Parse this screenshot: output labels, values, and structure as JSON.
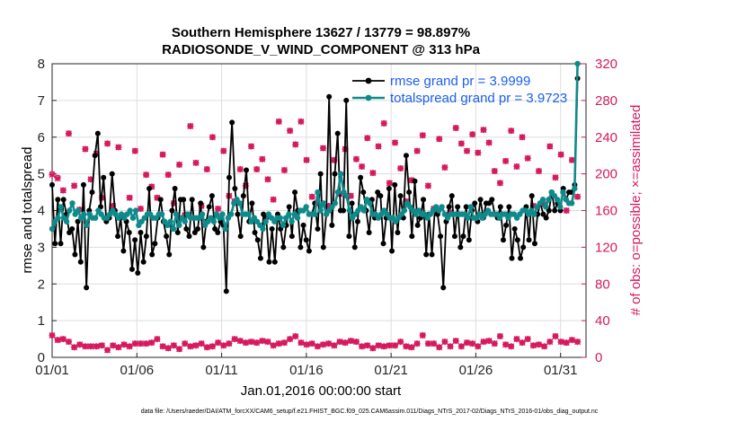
{
  "colors": {
    "rmse": "#000000",
    "spread": "#0f8a8a",
    "obs": "#d6195e",
    "legend_text": "#1a5ff0",
    "grid": "#dddddd"
  },
  "chart_data": {
    "type": "line",
    "title": "Southern Hemisphere 13627 / 13779 = 98.897%",
    "subtitle": "RADIOSONDE_V_WIND_COMPONENT @ 313 hPa",
    "xlabel": "Jan.01,2016 00:00:00 start",
    "ylabel": "rmse and totalspread",
    "ylabel_right": "# of obs: o=possible; ×=assimilated",
    "footnote": "data file: /Users/raeder/DAI/ATM_forcXX/CAM6_setup/f.e21.FHIST_BGC.f09_025.CAM6assim.011/Diags_NTrS_2017-02/Diags_NTrS_2016-01/obs_diag_output.nc",
    "xlim": [
      0,
      31.5
    ],
    "ylim": [
      0,
      8
    ],
    "ylim_right": [
      0,
      320
    ],
    "x_ticks": [
      0,
      5,
      10,
      15,
      20,
      25,
      30
    ],
    "x_tick_labels": [
      "01/01",
      "01/06",
      "01/11",
      "01/16",
      "01/21",
      "01/26",
      "01/31"
    ],
    "y_ticks": [
      0,
      1,
      2,
      3,
      4,
      5,
      6,
      7,
      8
    ],
    "y_tick_labels": [
      "0",
      "1",
      "2",
      "3",
      "4",
      "5",
      "6",
      "7",
      "8"
    ],
    "y_right_ticks": [
      0,
      40,
      80,
      120,
      160,
      200,
      240,
      280,
      320
    ],
    "y_right_tick_labels": [
      "0",
      "40",
      "80",
      "120",
      "160",
      "200",
      "240",
      "280",
      "320"
    ],
    "legend": [
      {
        "name": "rmse",
        "label": "rmse grand pr = 3.9999"
      },
      {
        "name": "totalspread",
        "label": "totalspread grand pr = 3.9723"
      }
    ],
    "series": [
      {
        "name": "rmse",
        "axis": "left",
        "values": [
          4.7,
          3.1,
          4.3,
          3.1,
          4.3,
          3.9,
          3.4,
          3.5,
          2.8,
          3.7,
          2.6,
          4.7,
          1.9,
          4.0,
          4.5,
          5.5,
          6.1,
          4.1,
          4.9,
          3.7,
          3.8,
          5.0,
          4.0,
          3.3,
          3.8,
          2.9,
          3.7,
          3.4,
          2.4,
          3.2,
          2.3,
          3.4,
          2.6,
          3.3,
          4.6,
          2.8,
          3.1,
          3.8,
          4.3,
          3.7,
          3.3,
          2.8,
          4.0,
          4.6,
          3.4,
          4.3,
          4.3,
          3.5,
          3.3,
          4.3,
          3.4,
          3.5,
          4.2,
          3.0,
          3.7,
          4.1,
          4.4,
          3.5,
          3.4,
          3.7,
          3.6,
          1.8,
          4.9,
          6.4,
          4.6,
          3.9,
          3.3,
          4.4,
          5.1,
          3.7,
          4.2,
          3.4,
          3.2,
          2.7,
          3.9,
          3.8,
          2.6,
          3.5,
          2.6,
          3.9,
          3.5,
          3.0,
          3.6,
          4.1,
          3.3,
          4.5,
          4.0,
          3.0,
          3.6,
          3.2,
          2.9,
          3.9,
          4.2,
          3.5,
          5.0,
          3.0,
          3.9,
          7.1,
          3.6,
          5.0,
          6.1,
          4.0,
          4.0,
          7.0,
          3.3,
          4.2,
          3.0,
          3.7,
          4.9,
          4.5,
          4.0,
          3.4,
          4.3,
          3.8,
          4.5,
          4.4,
          3.1,
          3.8,
          4.6,
          2.9,
          4.7,
          3.4,
          4.4,
          3.8,
          5.5,
          4.5,
          3.3,
          4.8,
          3.6,
          3.8,
          4.3,
          2.8,
          3.9,
          2.8,
          4.0,
          3.9,
          3.3,
          1.9,
          3.7,
          4.1,
          4.4,
          3.3,
          4.1,
          3.0,
          3.3,
          4.1,
          3.2,
          4.0,
          4.2,
          3.7,
          4.3,
          3.8,
          4.2,
          4.2,
          4.3,
          3.9,
          3.8,
          4.1,
          3.2,
          3.6,
          4.1,
          2.7,
          3.5,
          3.2,
          2.7,
          3.0,
          4.1,
          3.2,
          4.4,
          3.1,
          3.9,
          4.2,
          3.9,
          3.8,
          4.0,
          4.5,
          4.0,
          4.2,
          4.0,
          4.6,
          4.3,
          4.5,
          4.5,
          4.7,
          7.6
        ]
      },
      {
        "name": "totalspread",
        "axis": "left",
        "values": [
          3.5,
          3.7,
          3.8,
          4.1,
          3.8,
          3.7,
          4.0,
          4.2,
          3.9,
          4.0,
          3.8,
          3.9,
          3.6,
          3.9,
          3.8,
          3.8,
          4.0,
          3.9,
          3.8,
          3.8,
          3.9,
          4.0,
          3.9,
          3.8,
          3.9,
          3.8,
          3.9,
          4.0,
          3.8,
          4.0,
          3.6,
          3.7,
          3.8,
          3.9,
          3.9,
          3.8,
          3.8,
          3.9,
          3.9,
          3.7,
          3.6,
          3.7,
          3.5,
          3.9,
          3.6,
          3.8,
          3.7,
          3.9,
          3.8,
          3.8,
          3.8,
          3.8,
          3.9,
          3.6,
          3.7,
          3.8,
          3.7,
          3.9,
          3.8,
          3.9,
          3.5,
          3.8,
          3.9,
          4.2,
          4.3,
          4.2,
          3.9,
          3.9,
          3.9,
          3.7,
          3.8,
          3.7,
          3.6,
          3.5,
          3.7,
          3.9,
          3.8,
          3.7,
          3.8,
          3.8,
          3.6,
          3.8,
          3.9,
          3.7,
          3.9,
          3.8,
          4.0,
          4.0,
          4.1,
          3.9,
          3.9,
          3.9,
          4.5,
          4.0,
          4.2,
          3.9,
          4.0,
          4.1,
          4.2,
          4.5,
          5.0,
          4.5,
          4.4,
          4.0,
          3.8,
          3.9,
          4.0,
          4.1,
          4.0,
          4.3,
          4.2,
          3.9,
          3.9,
          3.8,
          3.9,
          4.0,
          3.9,
          3.8,
          3.8,
          3.7,
          3.8,
          3.9,
          4.0,
          4.2,
          4.1,
          4.0,
          3.9,
          4.0,
          3.9,
          3.9,
          3.8,
          3.9,
          4.0,
          4.1,
          4.0,
          4.1,
          3.9,
          3.8,
          3.9,
          3.9,
          3.9,
          3.9,
          3.9,
          3.9,
          3.8,
          4.1,
          3.8,
          3.8,
          3.9,
          3.8,
          3.9,
          4.0,
          3.9,
          3.9,
          3.9,
          3.8,
          3.9,
          3.9,
          3.8,
          3.9,
          3.9,
          3.8,
          3.9,
          4.0,
          4.0,
          3.9,
          4.0,
          3.9,
          4.1,
          4.2,
          4.3,
          4.1,
          4.3,
          4.5,
          4.4,
          4.3,
          4.1,
          4.5,
          4.3,
          4.2,
          4.2,
          4.6,
          8.0
        ]
      },
      {
        "name": "obs_possible",
        "axis": "right",
        "marker": "o",
        "values": [
          200,
          165,
          196,
          233,
          182,
          201,
          244,
          157,
          187,
          219,
          161,
          215,
          227,
          186,
          194,
          176,
          222,
          204,
          174,
          210,
          233,
          189,
          165,
          178,
          229,
          195,
          154,
          209,
          174,
          215,
          225,
          185,
          162,
          234,
          199,
          168,
          186,
          232,
          174,
          209,
          221,
          165,
          199,
          184,
          168,
          228,
          210,
          174,
          155,
          203,
          252,
          177,
          212,
          188,
          165,
          229,
          205,
          177,
          240,
          200,
          162,
          189,
          225,
          210,
          176,
          236,
          170,
          256,
          205,
          220,
          187,
          192,
          230,
          155,
          205,
          175,
          216,
          257,
          194,
          220,
          172,
          234,
          257,
          160,
          204,
          176,
          247,
          184,
          232,
          167,
          257,
          206,
          215,
          188,
          175,
          240,
          168,
          206,
          228,
          218,
          165,
          192,
          215,
          240,
          178,
          221,
          227,
          205,
          176,
          196,
          216,
          163,
          208,
          220,
          239,
          182,
          201,
          188,
          230,
          175,
          255,
          210,
          190,
          200,
          234,
          167,
          206,
          198,
          170,
          246,
          193,
          216,
          225,
          180,
          242,
          209,
          187,
          239,
          162,
          225,
          238,
          252,
          207,
          236,
          158,
          179,
          250,
          199,
          233,
          188,
          225,
          166,
          243,
          184,
          223,
          162,
          248,
          199,
          234,
          170,
          203,
          225,
          190,
          240,
          214,
          180,
          247,
          165,
          208,
          198,
          240,
          174,
          217,
          229,
          165,
          212,
          203,
          186,
          167,
          188,
          230,
          157,
          196,
          209,
          221,
          198,
          160,
          196,
          215,
          244,
          175
        ]
      },
      {
        "name": "obs_assimilated",
        "axis": "right",
        "marker": "x",
        "values": [
          199,
          165,
          195,
          228,
          182,
          201,
          244,
          157,
          187,
          219,
          161,
          215,
          227,
          186,
          194,
          176,
          222,
          204,
          174,
          210,
          233,
          189,
          165,
          178,
          229,
          195,
          154,
          209,
          174,
          215,
          225,
          185,
          162,
          234,
          199,
          168,
          186,
          232,
          174,
          209,
          221,
          165,
          199,
          184,
          168,
          228,
          210,
          174,
          155,
          203,
          252,
          177,
          212,
          188,
          165,
          229,
          205,
          177,
          240,
          200,
          162,
          189,
          225,
          210,
          176,
          236,
          170,
          256,
          205,
          220,
          187,
          192,
          230,
          155,
          205,
          175,
          216,
          257,
          194,
          220,
          172,
          234,
          257,
          160,
          204,
          176,
          247,
          184,
          232,
          167,
          257,
          206,
          215,
          188,
          175,
          240,
          168,
          206,
          228,
          218,
          165,
          192,
          215,
          240,
          178,
          221,
          227,
          205,
          176,
          196,
          216,
          163,
          208,
          220,
          239,
          182,
          201,
          188,
          230,
          175,
          255,
          210,
          190,
          200,
          234,
          167,
          206,
          198,
          170,
          246,
          193,
          216,
          225,
          180,
          242,
          209,
          187,
          239,
          162,
          225,
          238,
          252,
          207,
          236,
          158,
          179,
          250,
          199,
          233,
          188,
          225,
          166,
          243,
          184,
          223,
          162,
          248,
          199,
          234,
          170,
          203,
          225,
          190,
          240,
          214,
          180,
          247,
          165,
          208,
          198,
          240,
          174,
          217,
          229,
          165,
          212,
          203,
          186,
          167,
          188,
          230,
          157,
          196,
          209,
          221,
          198,
          160,
          196,
          215,
          244,
          175
        ]
      },
      {
        "name": "obs_bottom_possible",
        "axis": "right",
        "marker": "o",
        "values": [
          24,
          15,
          19,
          9,
          20,
          13,
          17,
          13,
          11,
          19,
          14,
          16,
          12,
          16,
          12,
          16,
          12,
          15,
          13,
          18,
          8,
          15,
          13,
          17,
          11,
          18,
          14,
          20,
          12,
          17,
          15,
          11,
          15,
          10,
          15,
          13,
          16,
          11,
          20,
          14,
          12,
          17,
          10,
          17,
          13,
          16,
          9,
          18,
          15,
          14,
          12,
          19,
          13,
          18,
          15,
          20,
          11,
          17,
          12,
          33,
          16,
          24,
          13,
          18,
          15,
          12,
          20,
          16,
          18,
          14,
          16,
          12,
          17,
          13,
          16,
          12,
          18,
          14,
          17,
          15,
          13,
          19,
          15,
          13,
          16,
          12,
          20,
          15,
          23,
          13,
          16,
          16,
          14,
          24,
          15,
          20,
          12,
          18,
          14,
          17,
          15,
          20,
          13,
          12,
          17,
          14,
          16,
          13,
          18,
          14,
          17,
          15,
          12,
          16,
          13,
          17,
          10,
          15,
          13,
          17,
          12,
          16,
          13,
          14,
          13,
          15,
          17,
          14,
          12,
          15,
          11,
          21,
          15,
          14,
          24,
          17,
          15,
          12,
          15,
          17,
          11,
          15,
          17,
          13,
          12,
          18,
          18,
          15,
          12,
          18,
          16,
          13,
          15,
          22,
          12,
          19,
          17,
          12,
          18,
          13,
          15,
          21,
          23,
          17,
          14,
          15,
          12,
          18,
          20,
          17,
          16,
          14,
          20,
          15,
          13,
          17,
          14,
          18,
          12,
          22,
          17,
          15,
          23,
          19,
          17,
          13,
          16,
          14,
          19,
          22,
          17
        ]
      },
      {
        "name": "obs_bottom_assimilated",
        "axis": "right",
        "marker": "x",
        "values": [
          24,
          15,
          19,
          9,
          20,
          13,
          17,
          13,
          11,
          19,
          14,
          16,
          12,
          16,
          12,
          16,
          12,
          15,
          13,
          18,
          8,
          15,
          13,
          17,
          11,
          18,
          14,
          20,
          12,
          17,
          15,
          11,
          15,
          10,
          15,
          13,
          16,
          11,
          20,
          14,
          12,
          17,
          10,
          17,
          13,
          16,
          9,
          18,
          15,
          14,
          12,
          19,
          13,
          18,
          15,
          20,
          11,
          17,
          12,
          33,
          16,
          24,
          13,
          18,
          15,
          12,
          20,
          16,
          18,
          14,
          16,
          12,
          17,
          13,
          16,
          12,
          18,
          14,
          17,
          15,
          13,
          19,
          15,
          13,
          16,
          12,
          20,
          15,
          23,
          13,
          16,
          16,
          14,
          24,
          15,
          20,
          12,
          18,
          14,
          17,
          15,
          20,
          13,
          12,
          17,
          14,
          16,
          13,
          18,
          14,
          17,
          15,
          12,
          16,
          13,
          17,
          10,
          15,
          13,
          17,
          12,
          16,
          13,
          14,
          13,
          15,
          17,
          14,
          12,
          15,
          11,
          21,
          15,
          14,
          24,
          17,
          15,
          12,
          15,
          17,
          11,
          15,
          17,
          13,
          12,
          18,
          18,
          15,
          12,
          18,
          16,
          13,
          15,
          22,
          12,
          19,
          17,
          12,
          18,
          13,
          15,
          21,
          23,
          17,
          14,
          15,
          12,
          18,
          20,
          17,
          16,
          14,
          20,
          15,
          13,
          17,
          14,
          18,
          12,
          22,
          17,
          15,
          23,
          19,
          17,
          13,
          16,
          14,
          19,
          22,
          17
        ]
      }
    ]
  }
}
